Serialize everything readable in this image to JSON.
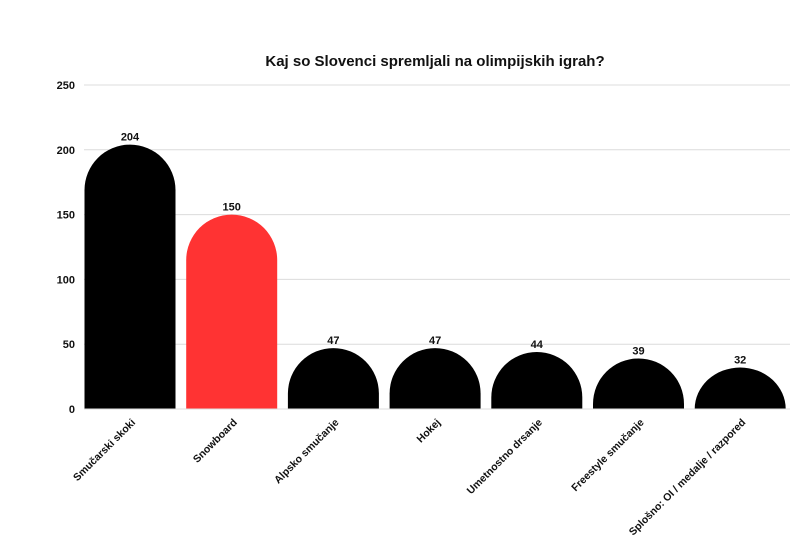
{
  "chart_data": {
    "type": "bar",
    "title": "Kaj so Slovenci spremljali na olimpijskih igrah?",
    "categories": [
      "Smučarski skoki",
      "Snowboard",
      "Alpsko smučanje",
      "Hokej",
      "Umetnostno drsanje",
      "Freestyle smučanje",
      "Splošno: OI / medalje / razpored"
    ],
    "values": [
      204,
      150,
      47,
      47,
      44,
      39,
      32
    ],
    "bar_colors": [
      "#000000",
      "#ff3333",
      "#000000",
      "#000000",
      "#000000",
      "#000000",
      "#000000"
    ],
    "yticks": [
      0,
      50,
      100,
      150,
      200,
      250
    ],
    "ylim": [
      0,
      250
    ],
    "grid": true,
    "xlabel": "",
    "ylabel": ""
  }
}
